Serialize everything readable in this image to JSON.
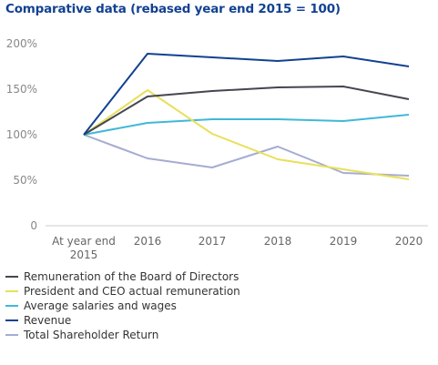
{
  "chart_data": {
    "type": "line",
    "title": "Comparative data (rebased year end 2015 = 100)",
    "x": [
      "At year end 2015",
      "2016",
      "2017",
      "2018",
      "2019",
      "2020"
    ],
    "y_ticks": [
      "0",
      "50%",
      "100%",
      "150%",
      "200%"
    ],
    "ylim": [
      0,
      200
    ],
    "grid": false,
    "legend_position": "bottom",
    "series": [
      {
        "name": "Remuneration of the Board of Directors",
        "color": "#444650",
        "values": [
          100,
          142,
          148,
          152,
          153,
          139
        ]
      },
      {
        "name": "President and CEO actual remuneration",
        "color": "#e8e05a",
        "values": [
          100,
          149,
          101,
          73,
          62,
          51
        ]
      },
      {
        "name": "Average salaries and wages",
        "color": "#40b8d8",
        "values": [
          100,
          113,
          117,
          117,
          115,
          122
        ]
      },
      {
        "name": "Revenue",
        "color": "#124191",
        "values": [
          100,
          189,
          185,
          181,
          186,
          175
        ]
      },
      {
        "name": "Total Shareholder Return",
        "color": "#a5acd1",
        "values": [
          100,
          74,
          64,
          87,
          58,
          55
        ]
      }
    ]
  }
}
